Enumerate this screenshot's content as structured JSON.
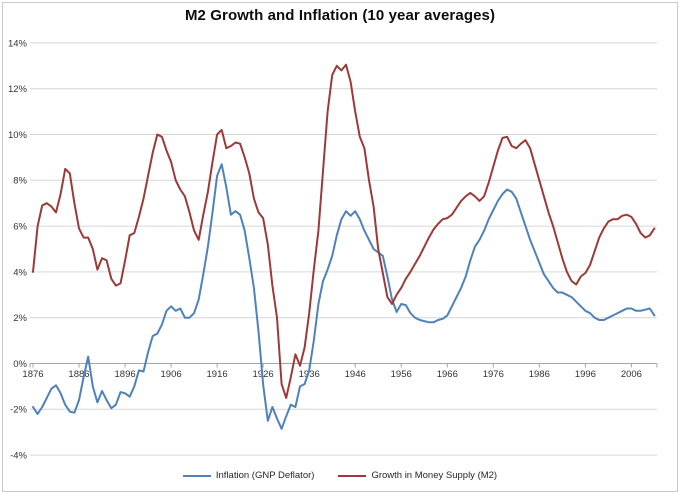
{
  "chart": {
    "title": "M2 Growth and Inflation (10 year averages)",
    "background_color": "#FFFFFF",
    "frame_border_color": "#C9C9C9",
    "gridline_color": "#D6D6D6",
    "axis_line_color": "#A6A6A6",
    "tick_label_color": "#333333"
  },
  "chart_data": {
    "type": "line",
    "title": "M2 Growth and Inflation (10 year averages)",
    "xlabel": "",
    "ylabel": "",
    "ylim": [
      -4,
      14
    ],
    "grid": true,
    "legend_position": "bottom",
    "y_ticks": [
      -4,
      -2,
      0,
      2,
      4,
      6,
      8,
      10,
      12,
      14
    ],
    "y_tick_labels": [
      "-4%",
      "-2%",
      "0%",
      "2%",
      "4%",
      "6%",
      "8%",
      "10%",
      "12%",
      "14%"
    ],
    "x_tick_years": [
      1876,
      1886,
      1896,
      1906,
      1916,
      1926,
      1936,
      1946,
      1956,
      1966,
      1976,
      1986,
      1996,
      2006
    ],
    "x_tick_labels": [
      "1876",
      "1886",
      "1896",
      "1906",
      "1916",
      "1926",
      "1936",
      "1946",
      "1956",
      "1966",
      "1976",
      "1986",
      "1996",
      "2006"
    ],
    "x": [
      1876,
      1877,
      1878,
      1879,
      1880,
      1881,
      1882,
      1883,
      1884,
      1885,
      1886,
      1887,
      1888,
      1889,
      1890,
      1891,
      1892,
      1893,
      1894,
      1895,
      1896,
      1897,
      1898,
      1899,
      1900,
      1901,
      1902,
      1903,
      1904,
      1905,
      1906,
      1907,
      1908,
      1909,
      1910,
      1911,
      1912,
      1913,
      1914,
      1915,
      1916,
      1917,
      1918,
      1919,
      1920,
      1921,
      1922,
      1923,
      1924,
      1925,
      1926,
      1927,
      1928,
      1929,
      1930,
      1931,
      1932,
      1933,
      1934,
      1935,
      1936,
      1937,
      1938,
      1939,
      1940,
      1941,
      1942,
      1943,
      1944,
      1945,
      1946,
      1947,
      1948,
      1949,
      1950,
      1951,
      1952,
      1953,
      1954,
      1955,
      1956,
      1957,
      1958,
      1959,
      1960,
      1961,
      1962,
      1963,
      1964,
      1965,
      1966,
      1967,
      1968,
      1969,
      1970,
      1971,
      1972,
      1973,
      1974,
      1975,
      1976,
      1977,
      1978,
      1979,
      1980,
      1981,
      1982,
      1983,
      1984,
      1985,
      1986,
      1987,
      1988,
      1989,
      1990,
      1991,
      1992,
      1993,
      1994,
      1995,
      1996,
      1997,
      1998,
      1999,
      2000,
      2001,
      2002,
      2003,
      2004,
      2005,
      2006,
      2007,
      2008,
      2009,
      2010,
      2011
    ],
    "series": [
      {
        "name": "Inflation (GNP Deflator)",
        "color": "#4F81BD",
        "values": [
          -1.9,
          -2.2,
          -1.9,
          -1.5,
          -1.1,
          -0.95,
          -1.3,
          -1.8,
          -2.1,
          -2.15,
          -1.6,
          -0.6,
          0.3,
          -1.0,
          -1.7,
          -1.2,
          -1.6,
          -1.95,
          -1.8,
          -1.25,
          -1.3,
          -1.45,
          -1.0,
          -0.3,
          -0.35,
          0.5,
          1.2,
          1.3,
          1.7,
          2.3,
          2.5,
          2.3,
          2.4,
          2.0,
          2.0,
          2.2,
          2.8,
          3.9,
          5.1,
          6.6,
          8.2,
          8.7,
          7.7,
          6.5,
          6.65,
          6.5,
          5.8,
          4.6,
          3.3,
          1.4,
          -0.9,
          -2.5,
          -1.9,
          -2.4,
          -2.85,
          -2.3,
          -1.8,
          -1.9,
          -1.0,
          -0.9,
          -0.3,
          1.0,
          2.6,
          3.6,
          4.1,
          4.7,
          5.6,
          6.3,
          6.65,
          6.45,
          6.65,
          6.3,
          5.8,
          5.4,
          5.0,
          4.85,
          4.7,
          3.8,
          2.8,
          2.25,
          2.6,
          2.55,
          2.2,
          2.0,
          1.9,
          1.85,
          1.8,
          1.8,
          1.9,
          1.95,
          2.1,
          2.5,
          2.9,
          3.3,
          3.8,
          4.5,
          5.1,
          5.4,
          5.8,
          6.3,
          6.7,
          7.1,
          7.4,
          7.6,
          7.5,
          7.2,
          6.6,
          6.0,
          5.4,
          4.9,
          4.4,
          3.9,
          3.6,
          3.3,
          3.1,
          3.1,
          3.0,
          2.9,
          2.7,
          2.5,
          2.3,
          2.2,
          2.0,
          1.9,
          1.9,
          2.0,
          2.1,
          2.2,
          2.3,
          2.4,
          2.4,
          2.3,
          2.3,
          2.35,
          2.4,
          2.1
        ]
      },
      {
        "name": "Growth in Money Supply (M2)",
        "color": "#9C3A38",
        "values": [
          4.0,
          6.0,
          6.9,
          7.0,
          6.85,
          6.6,
          7.4,
          8.5,
          8.3,
          7.0,
          5.9,
          5.5,
          5.5,
          5.0,
          4.1,
          4.6,
          4.5,
          3.7,
          3.4,
          3.5,
          4.5,
          5.6,
          5.7,
          6.4,
          7.2,
          8.2,
          9.2,
          10.0,
          9.9,
          9.3,
          8.8,
          8.0,
          7.6,
          7.3,
          6.6,
          5.8,
          5.4,
          6.5,
          7.5,
          8.8,
          10.0,
          10.2,
          9.4,
          9.5,
          9.65,
          9.6,
          9.0,
          8.3,
          7.2,
          6.6,
          6.35,
          5.2,
          3.4,
          2.0,
          -0.9,
          -1.5,
          -0.6,
          0.4,
          -0.1,
          0.7,
          2.2,
          4.1,
          5.8,
          8.4,
          11.0,
          12.6,
          13.0,
          12.8,
          13.05,
          12.3,
          11.0,
          9.9,
          9.4,
          8.0,
          6.85,
          5.0,
          3.95,
          2.9,
          2.6,
          3.0,
          3.3,
          3.7,
          4.0,
          4.35,
          4.7,
          5.1,
          5.5,
          5.85,
          6.1,
          6.3,
          6.35,
          6.5,
          6.8,
          7.1,
          7.3,
          7.45,
          7.3,
          7.1,
          7.3,
          7.9,
          8.6,
          9.3,
          9.85,
          9.9,
          9.5,
          9.4,
          9.6,
          9.75,
          9.4,
          8.7,
          8.0,
          7.3,
          6.6,
          6.0,
          5.3,
          4.6,
          4.0,
          3.6,
          3.45,
          3.8,
          3.95,
          4.3,
          4.9,
          5.5,
          5.9,
          6.2,
          6.3,
          6.3,
          6.45,
          6.5,
          6.4,
          6.1,
          5.7,
          5.5,
          5.6,
          5.9
        ]
      }
    ]
  }
}
